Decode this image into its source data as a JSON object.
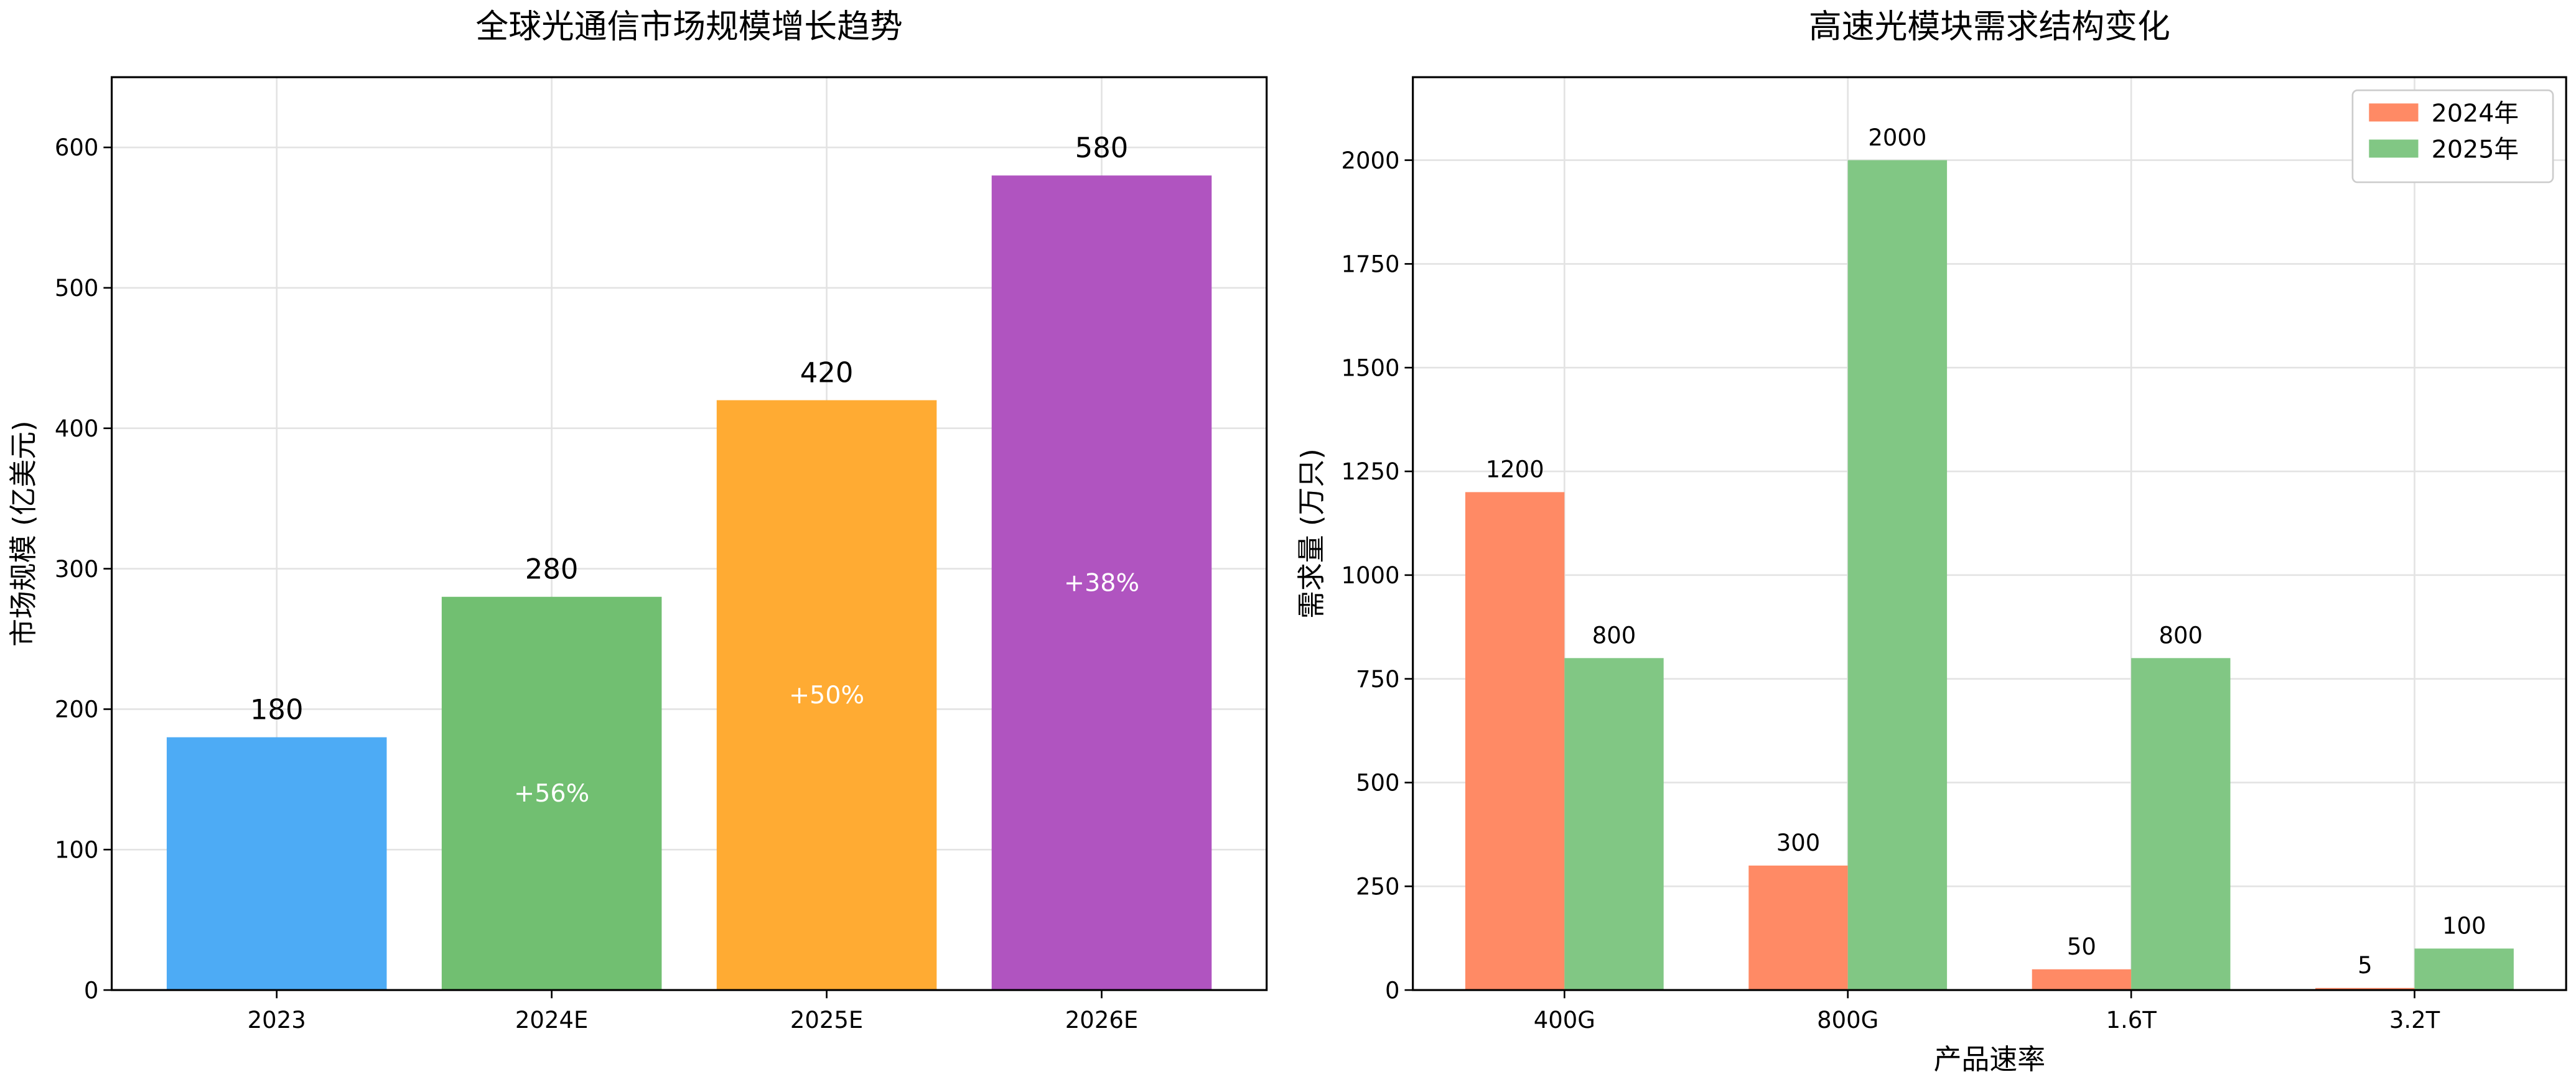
{
  "chart_data": [
    {
      "type": "bar",
      "title": "全球光通信市场规模增长趋势",
      "ylabel": "市场规模 (亿美元)",
      "categories": [
        "2023",
        "2024E",
        "2025E",
        "2026E"
      ],
      "values": [
        180,
        280,
        420,
        580
      ],
      "colors": [
        "#4dabf5",
        "#71bf71",
        "#ffab33",
        "#b054c0"
      ],
      "annotations": [
        null,
        "+56%",
        "+50%",
        "+38%"
      ],
      "ylim": [
        0,
        650
      ],
      "yticks": [
        0,
        100,
        200,
        300,
        400,
        500,
        600
      ],
      "grid": true
    },
    {
      "type": "grouped_bar",
      "title": "高速光模块需求结构变化",
      "xlabel": "产品速率",
      "ylabel": "需求量 (万只)",
      "categories": [
        "400G",
        "800G",
        "1.6T",
        "3.2T"
      ],
      "series": [
        {
          "name": "2024年",
          "color": "#ff8a65",
          "values": [
            1200,
            300,
            50,
            5
          ]
        },
        {
          "name": "2025年",
          "color": "#81c784",
          "values": [
            800,
            2000,
            800,
            100
          ]
        }
      ],
      "ylim": [
        0,
        2200
      ],
      "yticks": [
        0,
        250,
        500,
        750,
        1000,
        1250,
        1500,
        1750,
        2000
      ],
      "grid": true,
      "legend": "upper right"
    }
  ]
}
